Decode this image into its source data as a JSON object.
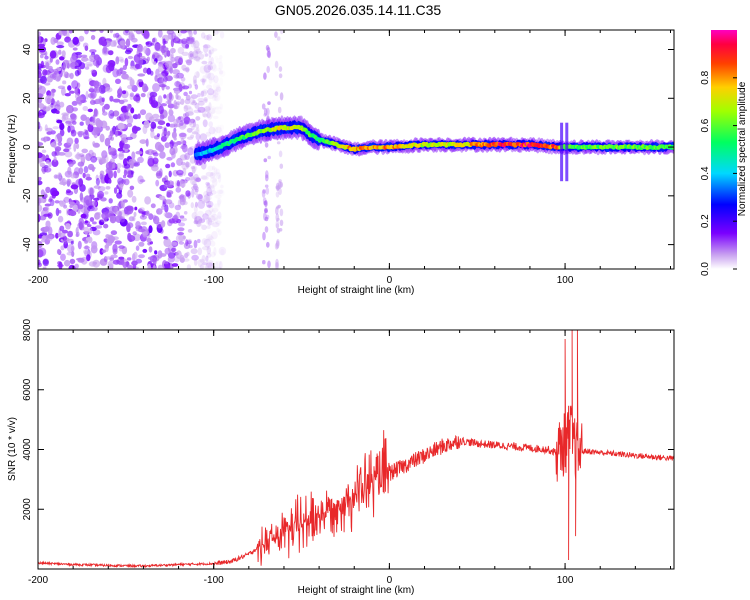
{
  "title": "GN05.2026.035.14.11.C35",
  "colors": {
    "snr_line": "#e8282a",
    "axis": "#000000",
    "background": "#ffffff"
  },
  "chart_data": [
    {
      "type": "heatmap",
      "title": "GN05.2026.035.14.11.C35",
      "xlabel": "Height of straight line (km)",
      "ylabel": "Frequency (Hz)",
      "xlim": [
        -200,
        162
      ],
      "ylim": [
        -50,
        48
      ],
      "x_ticks": [
        "-200",
        "-100",
        "0",
        "100"
      ],
      "x_tick_values": [
        -200,
        -100,
        0,
        100
      ],
      "y_ticks": [
        "-40",
        "-20",
        "0",
        "20",
        "40"
      ],
      "y_tick_values": [
        -40,
        -20,
        0,
        20,
        40
      ],
      "colorbar": {
        "label": "Normalized spectral amplitude",
        "range": [
          0,
          1
        ],
        "ticks": [
          "0.0",
          "0.2",
          "0.4",
          "0.6",
          "0.8"
        ],
        "tick_values": [
          0.0,
          0.2,
          0.4,
          0.6,
          0.8
        ],
        "colormap": "rainbow (violet to red, white at zero)"
      },
      "noise_region_x": [
        -200,
        -95
      ],
      "trace": {
        "x": [
          -110,
          -100,
          -90,
          -80,
          -70,
          -60,
          -50,
          -45,
          -40,
          -30,
          -20,
          -10,
          0,
          20,
          40,
          60,
          80,
          95,
          100,
          110,
          130,
          162
        ],
        "freq": [
          -3,
          -1,
          2,
          5,
          7,
          8,
          8,
          5,
          3,
          1,
          -1,
          0,
          0,
          1,
          1,
          1,
          1,
          0,
          0,
          0,
          0,
          0
        ],
        "amplitude": [
          0.35,
          0.45,
          0.55,
          0.6,
          0.7,
          0.75,
          0.7,
          0.6,
          0.55,
          0.7,
          0.85,
          0.8,
          0.85,
          0.7,
          0.75,
          0.95,
          0.95,
          0.9,
          0.6,
          0.6,
          0.65,
          0.6
        ]
      }
    },
    {
      "type": "line",
      "xlabel": "Height of straight line (km)",
      "ylabel": "SNR (10 * v/v)",
      "xlim": [
        -200,
        162
      ],
      "ylim": [
        0,
        8000
      ],
      "x_ticks": [
        "-200",
        "-100",
        "0",
        "100"
      ],
      "x_tick_values": [
        -200,
        -100,
        0,
        100
      ],
      "y_ticks": [
        "2000",
        "4000",
        "6000",
        "8000"
      ],
      "y_tick_values": [
        2000,
        4000,
        6000,
        8000
      ],
      "series": [
        {
          "name": "SNR",
          "color": "#e8282a",
          "x": [
            -200,
            -180,
            -160,
            -140,
            -120,
            -100,
            -90,
            -80,
            -70,
            -60,
            -50,
            -40,
            -30,
            -20,
            -10,
            0,
            10,
            20,
            30,
            40,
            50,
            60,
            70,
            80,
            90,
            95,
            100,
            103,
            106,
            110,
            120,
            130,
            140,
            150,
            162
          ],
          "values": [
            200,
            150,
            120,
            100,
            150,
            180,
            250,
            500,
            900,
            1200,
            1500,
            1800,
            2100,
            2500,
            2900,
            3200,
            3500,
            3800,
            4100,
            4300,
            4200,
            4150,
            4100,
            4050,
            4000,
            3900,
            4200,
            4600,
            4000,
            3950,
            3900,
            3850,
            3800,
            3750,
            3700
          ],
          "spikes": [
            {
              "x": 100,
              "value": 7700
            },
            {
              "x": 102,
              "value": 300
            },
            {
              "x": 104,
              "value": 8000
            },
            {
              "x": 106,
              "value": 1100
            },
            {
              "x": 107,
              "value": 8000
            }
          ]
        }
      ]
    }
  ]
}
